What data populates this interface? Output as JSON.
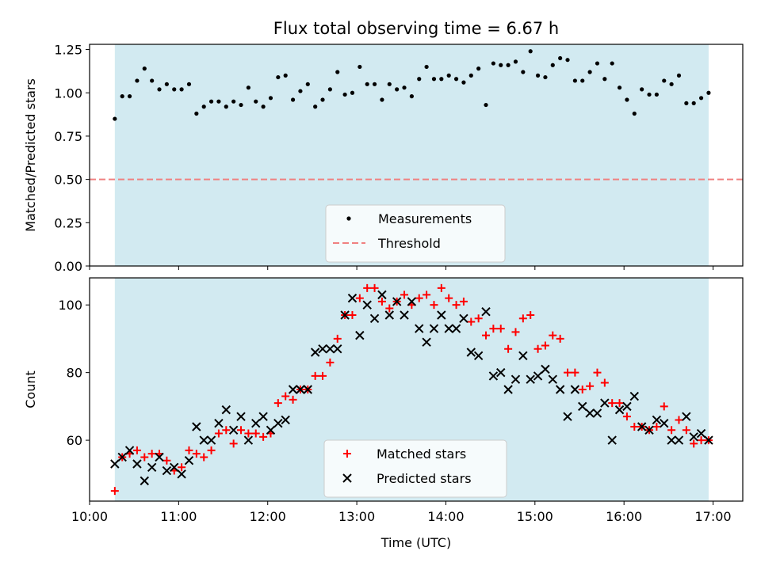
{
  "title": "Flux total observing time = 6.67 h",
  "xlabel": "Time (UTC)",
  "x_ticks": [
    "10:00",
    "11:00",
    "12:00",
    "13:00",
    "14:00",
    "15:00",
    "16:00",
    "17:00"
  ],
  "colors": {
    "span": "#add8e6",
    "measurements": "#000000",
    "threshold": "#f08080",
    "matched": "#ff0000",
    "predicted": "#000000"
  },
  "chart_data": [
    {
      "type": "scatter",
      "ylabel": "Matched/Predicted stars",
      "xlim": [
        "10:00",
        "17:20"
      ],
      "ylim": [
        0,
        1.28
      ],
      "yticks": [
        "0.00",
        "0.25",
        "0.50",
        "0.75",
        "1.00",
        "1.25"
      ],
      "observing_span": [
        "10:17",
        "16:57"
      ],
      "legend_placement": "lower-center",
      "threshold": {
        "name": "Threshold",
        "value": 0.5,
        "style": "dashed"
      },
      "series": [
        {
          "name": "Measurements",
          "marker": "dot",
          "x": [
            "10:17",
            "10:22",
            "10:27",
            "10:32",
            "10:37",
            "10:42",
            "10:47",
            "10:52",
            "10:57",
            "11:02",
            "11:07",
            "11:12",
            "11:17",
            "11:22",
            "11:27",
            "11:32",
            "11:37",
            "11:42",
            "11:47",
            "11:52",
            "11:57",
            "12:02",
            "12:07",
            "12:12",
            "12:17",
            "12:22",
            "12:27",
            "12:32",
            "12:37",
            "12:42",
            "12:47",
            "12:52",
            "12:57",
            "13:02",
            "13:07",
            "13:12",
            "13:17",
            "13:22",
            "13:27",
            "13:32",
            "13:37",
            "13:42",
            "13:47",
            "13:52",
            "13:57",
            "14:02",
            "14:07",
            "14:12",
            "14:17",
            "14:22",
            "14:27",
            "14:32",
            "14:37",
            "14:42",
            "14:47",
            "14:52",
            "14:57",
            "15:02",
            "15:07",
            "15:12",
            "15:17",
            "15:22",
            "15:27",
            "15:32",
            "15:37",
            "15:42",
            "15:47",
            "15:52",
            "15:57",
            "16:02",
            "16:07",
            "16:12",
            "16:17",
            "16:22",
            "16:27",
            "16:32",
            "16:37",
            "16:42",
            "16:47",
            "16:52",
            "16:57"
          ],
          "y": [
            0.85,
            0.98,
            0.98,
            1.07,
            1.14,
            1.07,
            1.02,
            1.05,
            1.02,
            1.02,
            1.05,
            0.88,
            0.92,
            0.95,
            0.95,
            0.92,
            0.95,
            0.93,
            1.03,
            0.95,
            0.92,
            0.97,
            1.09,
            1.1,
            0.96,
            1.01,
            1.05,
            0.92,
            0.96,
            1.02,
            1.12,
            0.99,
            1.0,
            1.15,
            1.05,
            1.05,
            0.96,
            1.05,
            1.02,
            1.03,
            0.98,
            1.08,
            1.15,
            1.08,
            1.08,
            1.1,
            1.08,
            1.06,
            1.1,
            1.14,
            0.93,
            1.17,
            1.16,
            1.16,
            1.18,
            1.12,
            1.24,
            1.1,
            1.09,
            1.16,
            1.2,
            1.19,
            1.07,
            1.07,
            1.12,
            1.17,
            1.08,
            1.17,
            1.03,
            0.96,
            0.88,
            1.02,
            0.99,
            0.99,
            1.07,
            1.05,
            1.1,
            0.94,
            0.94,
            0.97,
            1.0
          ]
        }
      ]
    },
    {
      "type": "scatter",
      "ylabel": "Count",
      "xlim": [
        "10:00",
        "17:20"
      ],
      "ylim": [
        42,
        108
      ],
      "yticks": [
        "60",
        "80",
        "100"
      ],
      "observing_span": [
        "10:17",
        "16:57"
      ],
      "legend_placement": "lower-center",
      "series": [
        {
          "name": "Matched stars",
          "marker": "plus",
          "x": [
            "10:17",
            "10:22",
            "10:27",
            "10:32",
            "10:37",
            "10:42",
            "10:47",
            "10:52",
            "10:57",
            "11:02",
            "11:07",
            "11:12",
            "11:17",
            "11:22",
            "11:27",
            "11:32",
            "11:37",
            "11:42",
            "11:47",
            "11:52",
            "11:57",
            "12:02",
            "12:07",
            "12:12",
            "12:17",
            "12:22",
            "12:27",
            "12:32",
            "12:37",
            "12:42",
            "12:47",
            "12:52",
            "12:57",
            "13:02",
            "13:07",
            "13:12",
            "13:17",
            "13:22",
            "13:27",
            "13:32",
            "13:37",
            "13:42",
            "13:47",
            "13:52",
            "13:57",
            "14:02",
            "14:07",
            "14:12",
            "14:17",
            "14:22",
            "14:27",
            "14:32",
            "14:37",
            "14:42",
            "14:47",
            "14:52",
            "14:57",
            "15:02",
            "15:07",
            "15:12",
            "15:17",
            "15:22",
            "15:27",
            "15:32",
            "15:37",
            "15:42",
            "15:47",
            "15:52",
            "15:57",
            "16:02",
            "16:07",
            "16:12",
            "16:17",
            "16:22",
            "16:27",
            "16:32",
            "16:37",
            "16:42",
            "16:47",
            "16:52",
            "16:57"
          ],
          "y": [
            45,
            55,
            56,
            57,
            55,
            56,
            56,
            54,
            51,
            52,
            57,
            56,
            55,
            57,
            62,
            63,
            59,
            63,
            62,
            62,
            61,
            62,
            71,
            73,
            72,
            75,
            75,
            79,
            79,
            83,
            90,
            97,
            97,
            102,
            105,
            105,
            101,
            99,
            101,
            103,
            100,
            102,
            103,
            100,
            105,
            102,
            100,
            101,
            95,
            96,
            91,
            93,
            93,
            87,
            92,
            96,
            97,
            87,
            88,
            91,
            90,
            80,
            80,
            75,
            76,
            80,
            77,
            71,
            71,
            67,
            64,
            64,
            63,
            64,
            70,
            63,
            66,
            63,
            59,
            60,
            60
          ]
        },
        {
          "name": "Predicted stars",
          "marker": "x",
          "x": [
            "10:17",
            "10:22",
            "10:27",
            "10:32",
            "10:37",
            "10:42",
            "10:47",
            "10:52",
            "10:57",
            "11:02",
            "11:07",
            "11:12",
            "11:17",
            "11:22",
            "11:27",
            "11:32",
            "11:37",
            "11:42",
            "11:47",
            "11:52",
            "11:57",
            "12:02",
            "12:07",
            "12:12",
            "12:17",
            "12:22",
            "12:27",
            "12:32",
            "12:37",
            "12:42",
            "12:47",
            "12:52",
            "12:57",
            "13:02",
            "13:07",
            "13:12",
            "13:17",
            "13:22",
            "13:27",
            "13:32",
            "13:37",
            "13:42",
            "13:47",
            "13:52",
            "13:57",
            "14:02",
            "14:07",
            "14:12",
            "14:17",
            "14:22",
            "14:27",
            "14:32",
            "14:37",
            "14:42",
            "14:47",
            "14:52",
            "14:57",
            "15:02",
            "15:07",
            "15:12",
            "15:17",
            "15:22",
            "15:27",
            "15:32",
            "15:37",
            "15:42",
            "15:47",
            "15:52",
            "15:57",
            "16:02",
            "16:07",
            "16:12",
            "16:17",
            "16:22",
            "16:27",
            "16:32",
            "16:37",
            "16:42",
            "16:47",
            "16:52",
            "16:57"
          ],
          "y": [
            53,
            55,
            57,
            53,
            48,
            52,
            55,
            51,
            52,
            50,
            54,
            64,
            60,
            60,
            65,
            69,
            63,
            67,
            60,
            65,
            67,
            63,
            65,
            66,
            75,
            75,
            75,
            86,
            87,
            87,
            87,
            97,
            102,
            91,
            100,
            96,
            103,
            97,
            101,
            97,
            101,
            93,
            89,
            93,
            97,
            93,
            93,
            96,
            86,
            85,
            98,
            79,
            80,
            75,
            78,
            85,
            78,
            79,
            81,
            78,
            75,
            67,
            75,
            70,
            68,
            68,
            71,
            60,
            69,
            70,
            73,
            64,
            63,
            66,
            65,
            60,
            60,
            67,
            61,
            62,
            60
          ]
        }
      ]
    }
  ]
}
